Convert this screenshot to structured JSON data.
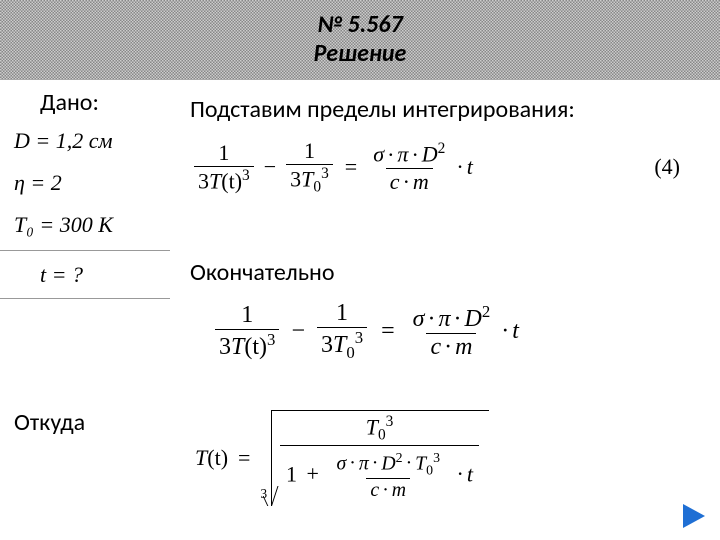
{
  "header": {
    "problem_no": "№ 5.567",
    "solution": "Решение"
  },
  "given": {
    "label": "Дано:",
    "items": {
      "D": "D = 1,2 см",
      "eta": "η = 2",
      "T0": "T₀ = 300 K"
    },
    "question": "t = ?"
  },
  "text": {
    "substitute": "Подставим пределы интегрирования:",
    "finally": "Окончательно",
    "whence": "Откуда"
  },
  "eq1": {
    "lhs_num1": "1",
    "lhs_den1_a": "3",
    "lhs_den1_b": "T",
    "lhs_den1_c": "(t)",
    "lhs_den1_exp": "3",
    "minus": "−",
    "lhs_num2": "1",
    "lhs_den2_a": "3",
    "lhs_den2_b": "T",
    "lhs_den2_sub": "0",
    "lhs_den2_exp": "3",
    "eq": "=",
    "rhs_num_sigma": "σ",
    "rhs_num_pi": "π",
    "rhs_num_D": "D",
    "rhs_num_D_exp": "2",
    "rhs_den_c": "c",
    "rhs_den_m": "m",
    "tail_t": "t",
    "eqnum": "(4)"
  },
  "eq3": {
    "Tlabel": "T",
    "targ": "(t)",
    "eq": "=",
    "root_index": "3",
    "num_T": "T",
    "num_T_sub": "0",
    "num_T_exp": "3",
    "den_one": "1",
    "plus": "+",
    "den_sigma": "σ",
    "den_pi": "π",
    "den_D": "D",
    "den_D_exp": "2",
    "den_T0": "T",
    "den_T0_sub": "0",
    "den_T0_exp": "3",
    "den_c": "c",
    "den_m": "m",
    "tail_t": "t"
  },
  "colors": {
    "arrow": "#1f6fd4"
  }
}
